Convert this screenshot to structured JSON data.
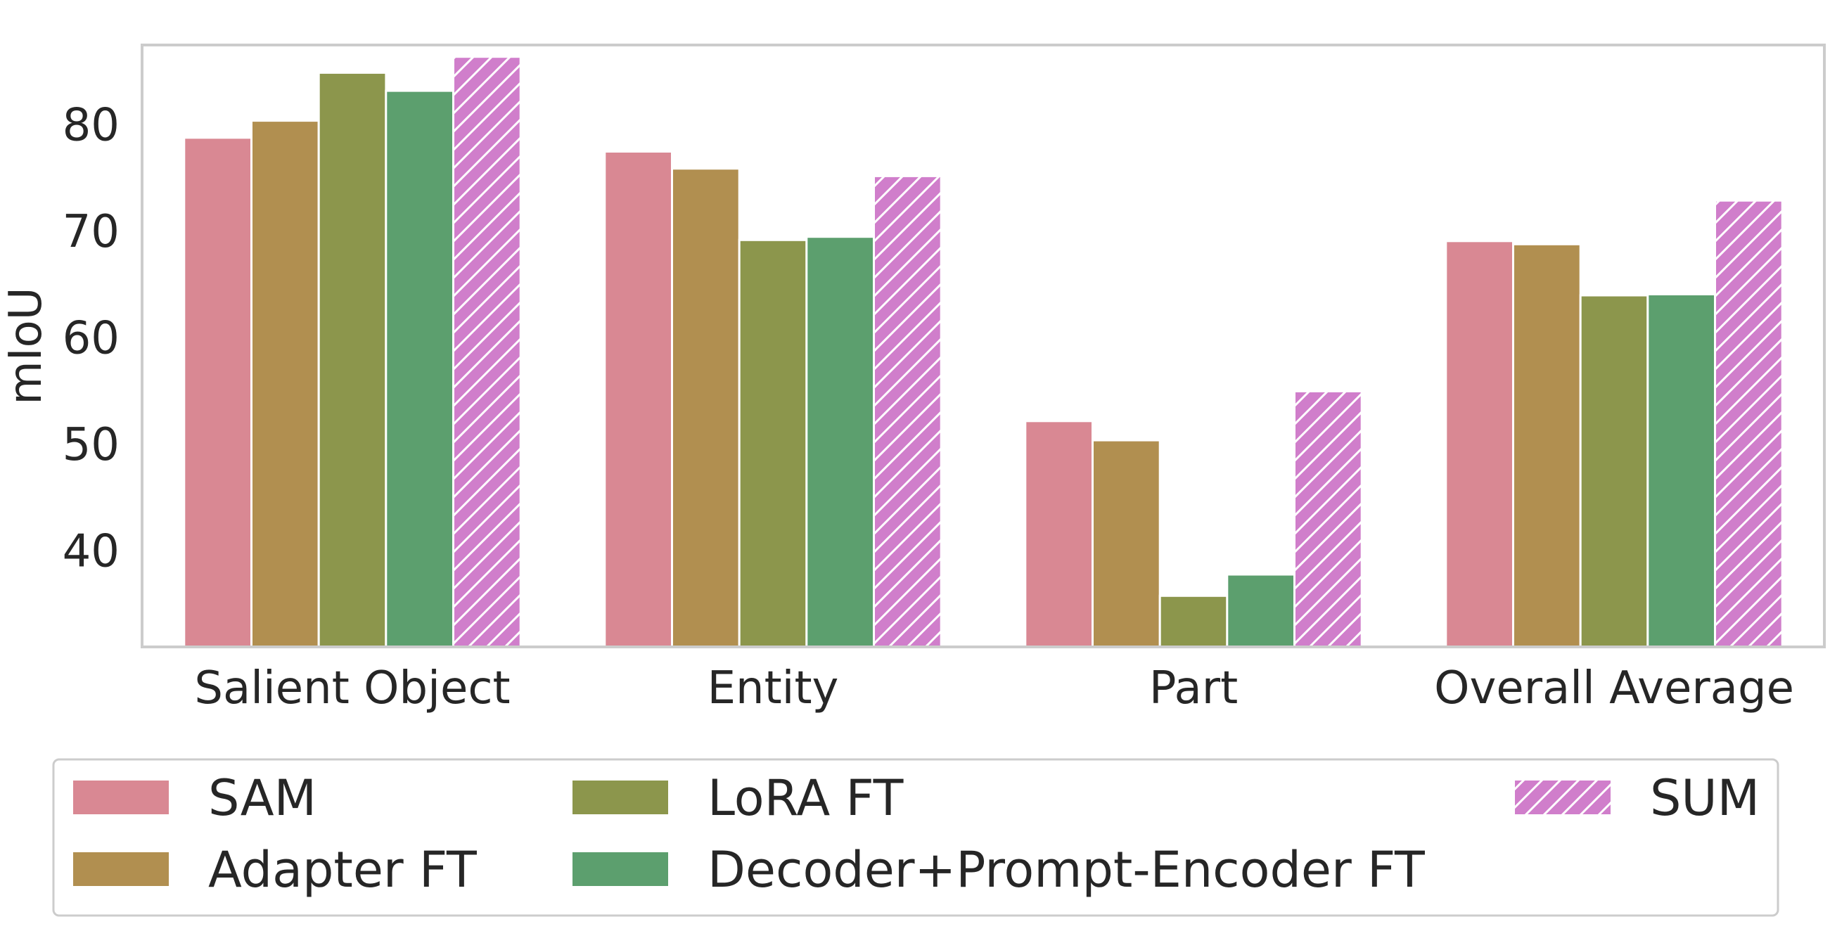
{
  "chart_data": {
    "type": "bar",
    "categories": [
      "Salient Object",
      "Entity",
      "Part",
      "Overall Average"
    ],
    "series": [
      {
        "name": "SAM",
        "values": [
          78.8,
          77.5,
          52.2,
          69.1
        ],
        "color": "#d98893",
        "hatch": false
      },
      {
        "name": "Adapter FT",
        "values": [
          80.4,
          75.9,
          50.4,
          68.8
        ],
        "color": "#b18f50",
        "hatch": false
      },
      {
        "name": "LoRA FT",
        "values": [
          84.9,
          69.2,
          35.8,
          64.0
        ],
        "color": "#8c964c",
        "hatch": false
      },
      {
        "name": "Decoder+Prompt-Encoder FT",
        "values": [
          83.2,
          69.5,
          37.8,
          64.1
        ],
        "color": "#5c9f6e",
        "hatch": false
      },
      {
        "name": "SUM",
        "values": [
          86.4,
          75.2,
          55.0,
          72.9
        ],
        "color": "#d07ecb",
        "hatch": true
      }
    ],
    "title": "",
    "xlabel": "",
    "ylabel": "mIoU",
    "yticks": [
      40,
      50,
      60,
      70,
      80
    ],
    "ylim": [
      31,
      87.5
    ],
    "grid": false,
    "legend": {
      "position": "bottom",
      "columns": 3,
      "order": [
        0,
        1,
        2,
        3,
        4
      ]
    }
  }
}
